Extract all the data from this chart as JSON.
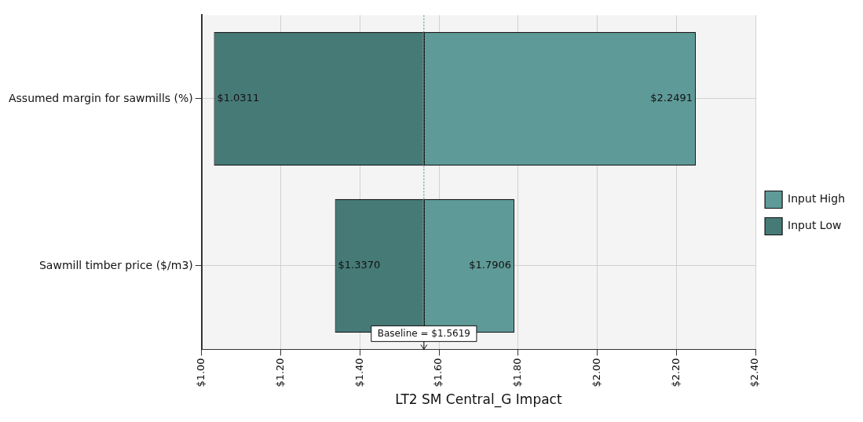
{
  "chart_data": {
    "type": "bar",
    "orientation": "horizontal",
    "xlabel": "LT2 SM Central_G Impact",
    "categories": [
      "Assumed margin for sawmills (%)",
      "Sawmill timber price ($/m3)"
    ],
    "series": [
      {
        "name": "Input High",
        "color": "#5e9a97",
        "base": [
          1.5619,
          1.5619
        ],
        "values": [
          0.6872,
          0.2287
        ],
        "value_labels": [
          "$2.2491",
          "$1.7906"
        ]
      },
      {
        "name": "Input Low",
        "color": "#467a77",
        "base": [
          1.5619,
          1.5619
        ],
        "values": [
          -0.5308,
          -0.2249
        ],
        "value_labels": [
          "$1.0311",
          "$1.3370"
        ]
      }
    ],
    "xlim": [
      1,
      2.4
    ],
    "xticks": [
      {
        "value": 1,
        "label": "$1.00"
      },
      {
        "value": 1.2,
        "label": "$1.20"
      },
      {
        "value": 1.4,
        "label": "$1.40"
      },
      {
        "value": 1.6,
        "label": "$1.60"
      },
      {
        "value": 1.8,
        "label": "$1.80"
      },
      {
        "value": 2,
        "label": "$2.00"
      },
      {
        "value": 2.2,
        "label": "$2.20"
      },
      {
        "value": 2.4,
        "label": "$2.40"
      }
    ],
    "ref_lines": [
      {
        "axis": "x",
        "value": 1.5619,
        "label": "Baseline = $1.5619",
        "color": "#4f8a6f",
        "line_style": "dotted"
      }
    ],
    "grid": true,
    "legend": "right"
  }
}
